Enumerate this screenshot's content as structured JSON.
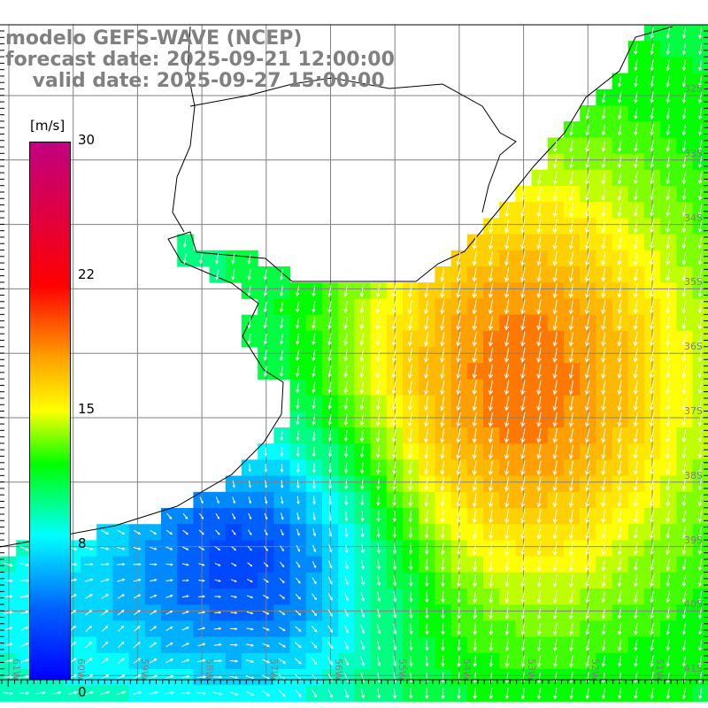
{
  "title": {
    "line1": "modelo GEFS-WAVE (NCEP)",
    "line2": "forecast date: 2025-09-21 12:00:00",
    "line3": "    valid date: 2025-09-27 15:00:00"
  },
  "colorbar": {
    "unit": "[m/s]",
    "labels": [
      "30",
      "22",
      "15",
      "8",
      "0"
    ],
    "stops": [
      {
        "value": 0,
        "color": "#0000ff"
      },
      {
        "value": 4,
        "color": "#0060ff"
      },
      {
        "value": 8,
        "color": "#00ffff"
      },
      {
        "value": 12,
        "color": "#00ff00"
      },
      {
        "value": 15,
        "color": "#ffff00"
      },
      {
        "value": 18,
        "color": "#ffa000"
      },
      {
        "value": 22,
        "color": "#ff0000"
      },
      {
        "value": 30,
        "color": "#c00080"
      }
    ]
  },
  "axes": {
    "latitudes": [
      "32S",
      "33S",
      "34S",
      "35S",
      "36S",
      "37S",
      "38S",
      "39S",
      "40S",
      "41S"
    ],
    "longitudes": [
      "61W",
      "60W",
      "59W",
      "58W",
      "57W",
      "56W",
      "55W",
      "54W",
      "53W",
      "52W",
      "51W"
    ]
  }
}
